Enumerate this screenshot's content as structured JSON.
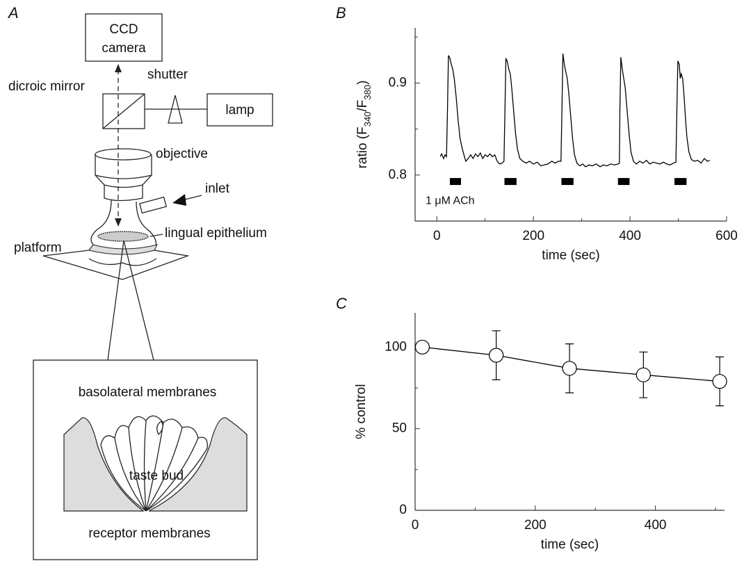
{
  "diagram": {
    "panel_label": "A",
    "camera_label": [
      "CCD",
      "camera"
    ],
    "mirror_label": "dicroic mirror",
    "shutter_label": "shutter",
    "lamp_label": "lamp",
    "objective_label": "objective",
    "inlet_label": "inlet",
    "epithelium_label": "lingual epithelium",
    "platform_label": "platform",
    "inset": {
      "top_label": "basolateral membranes",
      "center_label": "taste bud",
      "bottom_label": "receptor membranes"
    }
  },
  "chart_data": [
    {
      "panel_label": "B",
      "type": "line",
      "color": "#000000",
      "xlabel": "time (sec)",
      "ylabel_parts": [
        "ratio (F",
        "340",
        "/F",
        "380",
        ")"
      ],
      "xlim": [
        -45,
        600
      ],
      "xticks": [
        0,
        200,
        400,
        600
      ],
      "xminor_ticks": [
        100,
        300,
        500
      ],
      "ylim": [
        0.75,
        0.96
      ],
      "yticks": [
        0.8,
        0.9
      ],
      "yminor_ticks": [
        0.85,
        0.95
      ],
      "x": [
        7,
        10,
        14,
        17,
        20,
        22,
        24,
        27,
        30,
        33,
        36,
        40,
        44,
        48,
        52,
        56,
        60,
        65,
        70,
        75,
        80,
        85,
        90,
        95,
        100,
        105,
        110,
        115,
        120,
        125,
        130,
        135,
        139,
        141,
        143,
        146,
        149,
        152,
        155,
        159,
        163,
        167,
        172,
        178,
        185,
        192,
        200,
        208,
        215,
        222,
        230,
        238,
        245,
        252,
        257,
        259,
        261,
        264,
        267,
        270,
        273,
        277,
        281,
        285,
        290,
        296,
        302,
        308,
        315,
        322,
        330,
        338,
        345,
        352,
        360,
        368,
        375,
        378,
        379,
        381,
        384,
        387,
        390,
        394,
        398,
        402,
        407,
        413,
        420,
        427,
        434,
        441,
        448,
        455,
        462,
        469,
        476,
        483,
        490,
        495,
        497,
        499,
        502,
        504,
        506,
        509,
        512,
        515,
        518,
        522,
        527,
        533,
        540,
        547,
        554,
        560,
        565
      ],
      "values": [
        0.82,
        0.823,
        0.818,
        0.822,
        0.82,
        0.87,
        0.93,
        0.927,
        0.92,
        0.915,
        0.905,
        0.885,
        0.86,
        0.84,
        0.83,
        0.822,
        0.815,
        0.818,
        0.822,
        0.818,
        0.823,
        0.82,
        0.824,
        0.818,
        0.822,
        0.82,
        0.823,
        0.82,
        0.822,
        0.815,
        0.812,
        0.813,
        0.815,
        0.87,
        0.927,
        0.923,
        0.915,
        0.91,
        0.895,
        0.87,
        0.845,
        0.828,
        0.818,
        0.815,
        0.813,
        0.815,
        0.812,
        0.814,
        0.81,
        0.811,
        0.812,
        0.815,
        0.813,
        0.815,
        0.815,
        0.87,
        0.932,
        0.92,
        0.912,
        0.905,
        0.89,
        0.865,
        0.84,
        0.822,
        0.813,
        0.81,
        0.812,
        0.809,
        0.811,
        0.81,
        0.812,
        0.809,
        0.811,
        0.81,
        0.812,
        0.811,
        0.812,
        0.813,
        0.87,
        0.928,
        0.915,
        0.905,
        0.895,
        0.87,
        0.845,
        0.825,
        0.815,
        0.812,
        0.815,
        0.813,
        0.816,
        0.812,
        0.814,
        0.813,
        0.812,
        0.814,
        0.812,
        0.811,
        0.813,
        0.814,
        0.87,
        0.924,
        0.92,
        0.905,
        0.91,
        0.905,
        0.885,
        0.86,
        0.84,
        0.825,
        0.817,
        0.815,
        0.816,
        0.813,
        0.818,
        0.815,
        0.816
      ],
      "stimulus": {
        "label": "1 μM ACh",
        "level": 0.793,
        "bars": [
          {
            "start": 27,
            "end": 50
          },
          {
            "start": 140,
            "end": 165
          },
          {
            "start": 258,
            "end": 283
          },
          {
            "start": 375,
            "end": 399
          },
          {
            "start": 492,
            "end": 517
          }
        ]
      }
    },
    {
      "panel_label": "C",
      "type": "errorbar",
      "color": "#000000",
      "marker_fill": "#ffffff",
      "xlabel": "time (sec)",
      "ylabel": "% control",
      "xlim": [
        0,
        515
      ],
      "xticks": [
        0,
        200,
        400
      ],
      "xminor_ticks": [
        100,
        300,
        500
      ],
      "ylim": [
        0,
        121
      ],
      "yticks": [
        0,
        50,
        100
      ],
      "yminor_ticks": [
        25,
        75
      ],
      "x": [
        12,
        135,
        257,
        380,
        507
      ],
      "values": [
        100,
        95,
        87,
        83,
        79
      ],
      "errors": [
        0,
        15,
        15,
        14,
        15
      ]
    }
  ]
}
